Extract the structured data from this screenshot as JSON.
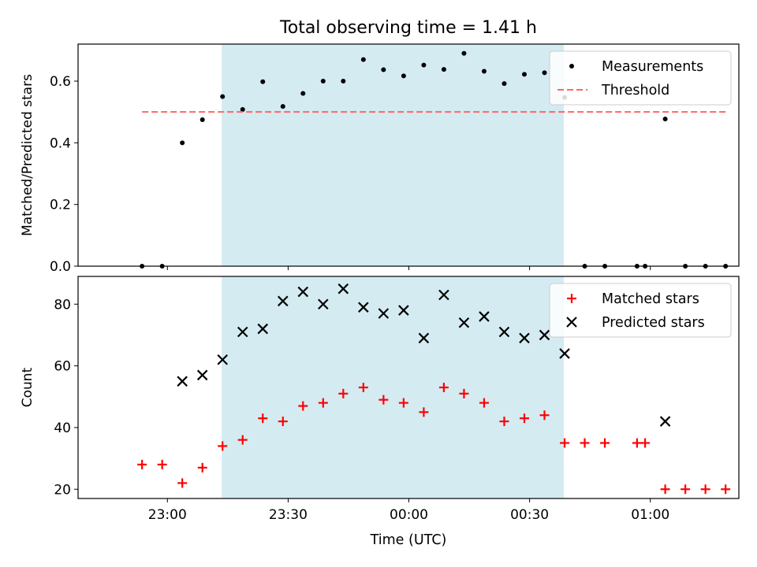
{
  "chart_data": {
    "title": "Total observing time = 1.41 h",
    "xlabel": "Time (UTC)",
    "x_ticks": [
      "23:00",
      "23:30",
      "00:00",
      "00:30",
      "01:00"
    ],
    "x_tick_minutes": [
      0,
      30,
      60,
      90,
      120
    ],
    "x_unit": "minutes after 23:00 UTC",
    "highlight_span_minutes": [
      13.5,
      98.5
    ],
    "highlight_color": "#add8e6",
    "panels": [
      {
        "type": "scatter",
        "ylabel": "Matched/Predicted stars",
        "ylim": [
          0,
          0.72
        ],
        "y_ticks": [
          "0.0",
          "0.2",
          "0.4",
          "0.6"
        ],
        "y_tick_values": [
          0,
          0.2,
          0.4,
          0.6
        ],
        "legend_position": "upper-right",
        "series": [
          {
            "name": "Measurements",
            "marker": "dot",
            "color": "#000000",
            "points": [
              [
                -6.3,
                0.0
              ],
              [
                -1.3,
                0.0
              ],
              [
                3.7,
                0.4
              ],
              [
                8.7,
                0.475
              ],
              [
                13.7,
                0.55
              ],
              [
                18.7,
                0.508
              ],
              [
                23.7,
                0.598
              ],
              [
                28.7,
                0.518
              ],
              [
                33.7,
                0.56
              ],
              [
                38.7,
                0.6
              ],
              [
                43.7,
                0.6
              ],
              [
                48.7,
                0.67
              ],
              [
                53.7,
                0.637
              ],
              [
                58.7,
                0.617
              ],
              [
                63.7,
                0.652
              ],
              [
                68.7,
                0.638
              ],
              [
                73.7,
                0.69
              ],
              [
                78.7,
                0.632
              ],
              [
                83.7,
                0.592
              ],
              [
                88.7,
                0.622
              ],
              [
                93.7,
                0.627
              ],
              [
                98.7,
                0.547
              ],
              [
                103.7,
                0.0
              ],
              [
                108.7,
                0.0
              ],
              [
                116.7,
                0.0
              ],
              [
                118.7,
                0.0
              ],
              [
                123.7,
                0.477
              ],
              [
                128.7,
                0.0
              ],
              [
                133.7,
                0.0
              ],
              [
                138.7,
                0.0
              ]
            ]
          },
          {
            "name": "Threshold",
            "type": "line",
            "style": "dashed",
            "color": "#ff6666",
            "x": [
              -6.3,
              138.7
            ],
            "y": [
              0.5,
              0.5
            ]
          }
        ]
      },
      {
        "type": "scatter",
        "ylabel": "Count",
        "ylim": [
          17,
          89
        ],
        "y_ticks": [
          "20",
          "40",
          "60",
          "80"
        ],
        "y_tick_values": [
          20,
          40,
          60,
          80
        ],
        "legend_position": "upper-right",
        "series": [
          {
            "name": "Matched stars",
            "marker": "plus",
            "color": "#ff0000",
            "points": [
              [
                -6.3,
                28
              ],
              [
                -1.3,
                28
              ],
              [
                3.7,
                22
              ],
              [
                8.7,
                27
              ],
              [
                13.7,
                34
              ],
              [
                18.7,
                36
              ],
              [
                23.7,
                43
              ],
              [
                28.7,
                42
              ],
              [
                33.7,
                47
              ],
              [
                38.7,
                48
              ],
              [
                43.7,
                51
              ],
              [
                48.7,
                53
              ],
              [
                53.7,
                49
              ],
              [
                58.7,
                48
              ],
              [
                63.7,
                45
              ],
              [
                68.7,
                53
              ],
              [
                73.7,
                51
              ],
              [
                78.7,
                48
              ],
              [
                83.7,
                42
              ],
              [
                88.7,
                43
              ],
              [
                93.7,
                44
              ],
              [
                98.7,
                35
              ],
              [
                103.7,
                35
              ],
              [
                108.7,
                35
              ],
              [
                116.7,
                35
              ],
              [
                118.7,
                35
              ],
              [
                123.7,
                20
              ],
              [
                128.7,
                20
              ],
              [
                133.7,
                20
              ],
              [
                138.7,
                20
              ]
            ]
          },
          {
            "name": "Predicted stars",
            "marker": "x",
            "color": "#000000",
            "points": [
              [
                3.7,
                55
              ],
              [
                8.7,
                57
              ],
              [
                13.7,
                62
              ],
              [
                18.7,
                71
              ],
              [
                23.7,
                72
              ],
              [
                28.7,
                81
              ],
              [
                33.7,
                84
              ],
              [
                38.7,
                80
              ],
              [
                43.7,
                85
              ],
              [
                48.7,
                79
              ],
              [
                53.7,
                77
              ],
              [
                58.7,
                78
              ],
              [
                63.7,
                69
              ],
              [
                68.7,
                83
              ],
              [
                73.7,
                74
              ],
              [
                78.7,
                76
              ],
              [
                83.7,
                71
              ],
              [
                88.7,
                69
              ],
              [
                93.7,
                70
              ],
              [
                98.7,
                64
              ],
              [
                123.7,
                42
              ]
            ]
          }
        ]
      }
    ]
  }
}
